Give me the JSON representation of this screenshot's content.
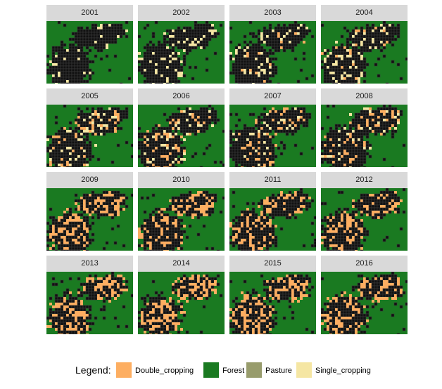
{
  "panels": [
    {
      "year": "2001",
      "cover": {
        "Forest": 0.55,
        "Pasture_dark": 0.38,
        "Double_cropping": 0.0,
        "Single_cropping": 0.07
      }
    },
    {
      "year": "2002",
      "cover": {
        "Forest": 0.45,
        "Pasture_dark": 0.45,
        "Double_cropping": 0.0,
        "Single_cropping": 0.1
      }
    },
    {
      "year": "2003",
      "cover": {
        "Forest": 0.4,
        "Pasture_dark": 0.45,
        "Double_cropping": 0.03,
        "Single_cropping": 0.12
      }
    },
    {
      "year": "2004",
      "cover": {
        "Forest": 0.35,
        "Pasture_dark": 0.45,
        "Double_cropping": 0.05,
        "Single_cropping": 0.15
      }
    },
    {
      "year": "2005",
      "cover": {
        "Forest": 0.35,
        "Pasture_dark": 0.45,
        "Double_cropping": 0.1,
        "Single_cropping": 0.1
      }
    },
    {
      "year": "2006",
      "cover": {
        "Forest": 0.35,
        "Pasture_dark": 0.45,
        "Double_cropping": 0.12,
        "Single_cropping": 0.08
      }
    },
    {
      "year": "2007",
      "cover": {
        "Forest": 0.35,
        "Pasture_dark": 0.45,
        "Double_cropping": 0.12,
        "Single_cropping": 0.08
      }
    },
    {
      "year": "2008",
      "cover": {
        "Forest": 0.3,
        "Pasture_dark": 0.5,
        "Double_cropping": 0.15,
        "Single_cropping": 0.05
      }
    },
    {
      "year": "2009",
      "cover": {
        "Forest": 0.3,
        "Pasture_dark": 0.4,
        "Double_cropping": 0.3,
        "Single_cropping": 0.0
      }
    },
    {
      "year": "2010",
      "cover": {
        "Forest": 0.3,
        "Pasture_dark": 0.4,
        "Double_cropping": 0.3,
        "Single_cropping": 0.0
      }
    },
    {
      "year": "2011",
      "cover": {
        "Forest": 0.3,
        "Pasture_dark": 0.42,
        "Double_cropping": 0.28,
        "Single_cropping": 0.0
      }
    },
    {
      "year": "2012",
      "cover": {
        "Forest": 0.3,
        "Pasture_dark": 0.4,
        "Double_cropping": 0.3,
        "Single_cropping": 0.0
      }
    },
    {
      "year": "2013",
      "cover": {
        "Forest": 0.3,
        "Pasture_dark": 0.35,
        "Double_cropping": 0.35,
        "Single_cropping": 0.0
      }
    },
    {
      "year": "2014",
      "cover": {
        "Forest": 0.3,
        "Pasture_dark": 0.33,
        "Double_cropping": 0.37,
        "Single_cropping": 0.0
      }
    },
    {
      "year": "2015",
      "cover": {
        "Forest": 0.3,
        "Pasture_dark": 0.4,
        "Double_cropping": 0.3,
        "Single_cropping": 0.0
      }
    },
    {
      "year": "2016",
      "cover": {
        "Forest": 0.3,
        "Pasture_dark": 0.4,
        "Double_cropping": 0.3,
        "Single_cropping": 0.0
      }
    }
  ],
  "legend": {
    "title": "Legend:",
    "items": [
      {
        "label": "Double_cropping",
        "color": "#FDAE61"
      },
      {
        "label": "Forest",
        "color": "#1A7A21"
      },
      {
        "label": "Pasture",
        "color": "#989C6C"
      },
      {
        "label": "Single_cropping",
        "color": "#F5E6A3"
      }
    ]
  },
  "colors": {
    "strip_bg": "#D9D9D9",
    "dark_cells": "#111111"
  }
}
